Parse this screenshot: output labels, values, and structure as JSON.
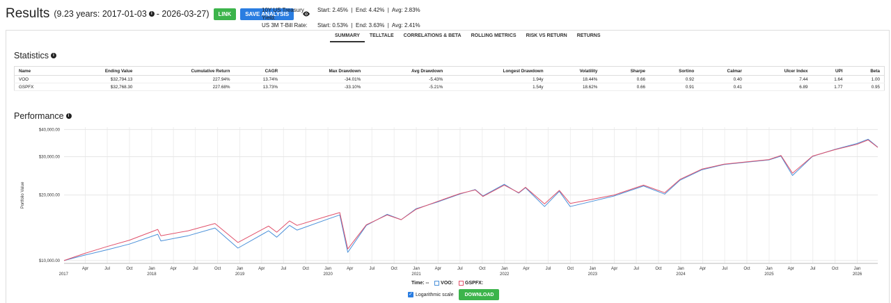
{
  "header": {
    "title": "Results",
    "range": "(9.23 years: 2017-01-03",
    "range_end": "- 2026-03-27)",
    "link_label": "LINK",
    "save_label": "SAVE ANALYSIS"
  },
  "rates": {
    "treasury_label": "10Y US Treasury Yield:",
    "treasury_value": "Start: 2.45%  |  End: 4.42%  |  Avg: 2.83%",
    "tbill_label": "US 3M T-Bill Rate:",
    "tbill_value": "Start: 0.53%  |  End: 3.63%  |  Avg: 2.41%"
  },
  "tabs": [
    "SUMMARY",
    "TELLTALE",
    "CORRELATIONS & BETA",
    "ROLLING METRICS",
    "RISK VS RETURN",
    "RETURNS"
  ],
  "active_tab": "SUMMARY",
  "statistics": {
    "title": "Statistics",
    "columns": [
      "Name",
      "Ending Value",
      "Cumulative Return",
      "CAGR",
      "Max Drawdown",
      "Avg Drawdown",
      "Longest Drawdown",
      "Volatility",
      "Sharpe",
      "Sortino",
      "Calmar",
      "Ulcer Index",
      "UPI",
      "Beta"
    ],
    "rows": [
      [
        "VOO",
        "$32,794.13",
        "227.94%",
        "13.74%",
        "-34.01%",
        "-5.43%",
        "1.94y",
        "18.44%",
        "0.66",
        "0.92",
        "0.40",
        "7.44",
        "1.64",
        "1.00"
      ],
      [
        "GSPFX",
        "$32,768.30",
        "227.68%",
        "13.73%",
        "-33.10%",
        "-5.21%",
        "1.54y",
        "18.62%",
        "0.66",
        "0.91",
        "0.41",
        "6.89",
        "1.77",
        "0.95"
      ]
    ]
  },
  "performance": {
    "title": "Performance",
    "time_label": "Time: --",
    "voo_label": "VOO:",
    "gspfx_label": "GSPFX:",
    "log_label": "Logarithmic scale",
    "download_label": "DOWNLOAD"
  },
  "colors": {
    "voo": "#4a90d9",
    "gspfx": "#e0506a",
    "green": "#3cb44b",
    "blue": "#2a7de1"
  },
  "chart_data": {
    "type": "line",
    "ylabel": "Portfolio Value",
    "yscale": "log",
    "ylim": [
      9700,
      41000
    ],
    "yticks": [
      10000,
      20000,
      30000,
      40000
    ],
    "ytick_labels": [
      "$10,000.00",
      "$20,000.00",
      "$30,000.00",
      "$40,000.00"
    ],
    "xlim": [
      "2017-01-03",
      "2026-03-27"
    ],
    "xticks": [
      {
        "d": "2017-04",
        "l": "Apr"
      },
      {
        "d": "2017-07",
        "l": "Jul"
      },
      {
        "d": "2017-10",
        "l": "Oct"
      },
      {
        "d": "2018-01",
        "l": "Jan"
      },
      {
        "d": "2018-04",
        "l": "Apr"
      },
      {
        "d": "2018-07",
        "l": "Jul"
      },
      {
        "d": "2018-10",
        "l": "Oct"
      },
      {
        "d": "2019-01",
        "l": "Jan"
      },
      {
        "d": "2019-04",
        "l": "Apr"
      },
      {
        "d": "2019-07",
        "l": "Jul"
      },
      {
        "d": "2019-10",
        "l": "Oct"
      },
      {
        "d": "2020-01",
        "l": "Jan"
      },
      {
        "d": "2020-04",
        "l": "Apr"
      },
      {
        "d": "2020-07",
        "l": "Jul"
      },
      {
        "d": "2020-10",
        "l": "Oct"
      },
      {
        "d": "2021-01",
        "l": "Jan"
      },
      {
        "d": "2021-04",
        "l": "Apr"
      },
      {
        "d": "2021-07",
        "l": "Jul"
      },
      {
        "d": "2021-10",
        "l": "Oct"
      },
      {
        "d": "2022-01",
        "l": "Jan"
      },
      {
        "d": "2022-04",
        "l": "Apr"
      },
      {
        "d": "2022-07",
        "l": "Jul"
      },
      {
        "d": "2022-10",
        "l": "Oct"
      },
      {
        "d": "2023-01",
        "l": "Jan"
      },
      {
        "d": "2023-04",
        "l": "Apr"
      },
      {
        "d": "2023-07",
        "l": "Jul"
      },
      {
        "d": "2023-10",
        "l": "Oct"
      },
      {
        "d": "2024-01",
        "l": "Jan"
      },
      {
        "d": "2024-04",
        "l": "Apr"
      },
      {
        "d": "2024-07",
        "l": "Jul"
      },
      {
        "d": "2024-10",
        "l": "Oct"
      },
      {
        "d": "2025-01",
        "l": "Jan"
      },
      {
        "d": "2025-04",
        "l": "Apr"
      },
      {
        "d": "2025-07",
        "l": "Jul"
      },
      {
        "d": "2025-10",
        "l": "Oct"
      },
      {
        "d": "2026-01",
        "l": "Jan"
      }
    ],
    "year_labels": [
      {
        "d": "2017-01",
        "l": "2017"
      },
      {
        "d": "2018-01",
        "l": "2018"
      },
      {
        "d": "2019-01",
        "l": "2019"
      },
      {
        "d": "2020-01",
        "l": "2020"
      },
      {
        "d": "2021-01",
        "l": "2021"
      },
      {
        "d": "2022-01",
        "l": "2022"
      },
      {
        "d": "2023-01",
        "l": "2023"
      },
      {
        "d": "2024-01",
        "l": "2024"
      },
      {
        "d": "2025-01",
        "l": "2025"
      },
      {
        "d": "2026-01",
        "l": "2026"
      }
    ],
    "grid": true,
    "series": [
      {
        "name": "VOO",
        "x": [
          "2017-01-03",
          "2017-04-01",
          "2017-07-01",
          "2017-10-01",
          "2018-01-26",
          "2018-02-08",
          "2018-06-01",
          "2018-09-20",
          "2018-12-24",
          "2019-04-30",
          "2019-06-03",
          "2019-07-26",
          "2019-08-26",
          "2019-12-31",
          "2020-02-19",
          "2020-03-23",
          "2020-06-08",
          "2020-09-02",
          "2020-10-30",
          "2020-12-31",
          "2021-03-31",
          "2021-06-30",
          "2021-09-02",
          "2021-10-04",
          "2021-12-31",
          "2022-03-01",
          "2022-03-29",
          "2022-06-16",
          "2022-08-16",
          "2022-09-30",
          "2022-12-30",
          "2023-03-31",
          "2023-07-31",
          "2023-10-27",
          "2023-12-29",
          "2024-03-28",
          "2024-06-28",
          "2024-09-30",
          "2024-12-31",
          "2025-02-19",
          "2025-04-08",
          "2025-06-30",
          "2025-09-30",
          "2025-12-31",
          "2026-02-15",
          "2026-03-27"
        ],
        "values": [
          10000,
          10600,
          11200,
          11900,
          13200,
          12300,
          13000,
          14100,
          11400,
          13700,
          12800,
          14500,
          13800,
          15500,
          16200,
          10900,
          14500,
          16300,
          15400,
          17300,
          18600,
          20200,
          21200,
          19800,
          22400,
          20400,
          21600,
          17700,
          20800,
          17700,
          18700,
          19800,
          22000,
          20200,
          23400,
          26100,
          27600,
          28300,
          29000,
          30200,
          24600,
          30100,
          32400,
          34500,
          36100,
          33200
        ]
      },
      {
        "name": "GSPFX",
        "x": [
          "2017-01-03",
          "2017-04-01",
          "2017-07-01",
          "2017-10-01",
          "2018-01-26",
          "2018-02-08",
          "2018-06-01",
          "2018-09-20",
          "2018-12-24",
          "2019-04-30",
          "2019-06-03",
          "2019-07-26",
          "2019-08-26",
          "2019-12-31",
          "2020-02-19",
          "2020-03-23",
          "2020-06-08",
          "2020-09-02",
          "2020-10-30",
          "2020-12-31",
          "2021-03-31",
          "2021-06-30",
          "2021-09-02",
          "2021-10-04",
          "2021-12-31",
          "2022-03-01",
          "2022-03-29",
          "2022-06-16",
          "2022-08-16",
          "2022-09-30",
          "2022-12-30",
          "2023-03-31",
          "2023-07-31",
          "2023-10-27",
          "2023-12-29",
          "2024-03-28",
          "2024-06-28",
          "2024-09-30",
          "2024-12-31",
          "2025-02-19",
          "2025-04-08",
          "2025-06-30",
          "2025-09-30",
          "2025-12-31",
          "2026-02-15",
          "2026-03-27"
        ],
        "values": [
          10000,
          10800,
          11600,
          12400,
          13900,
          13000,
          13700,
          14800,
          12100,
          14400,
          13500,
          15200,
          14500,
          16000,
          16600,
          11300,
          14600,
          16200,
          15400,
          17200,
          18700,
          20300,
          21100,
          19700,
          22200,
          20500,
          21700,
          18200,
          21000,
          18300,
          19100,
          20000,
          22200,
          20500,
          23600,
          26300,
          27700,
          28400,
          29100,
          30400,
          25200,
          30200,
          32300,
          34200,
          35800,
          33100
        ]
      }
    ]
  }
}
